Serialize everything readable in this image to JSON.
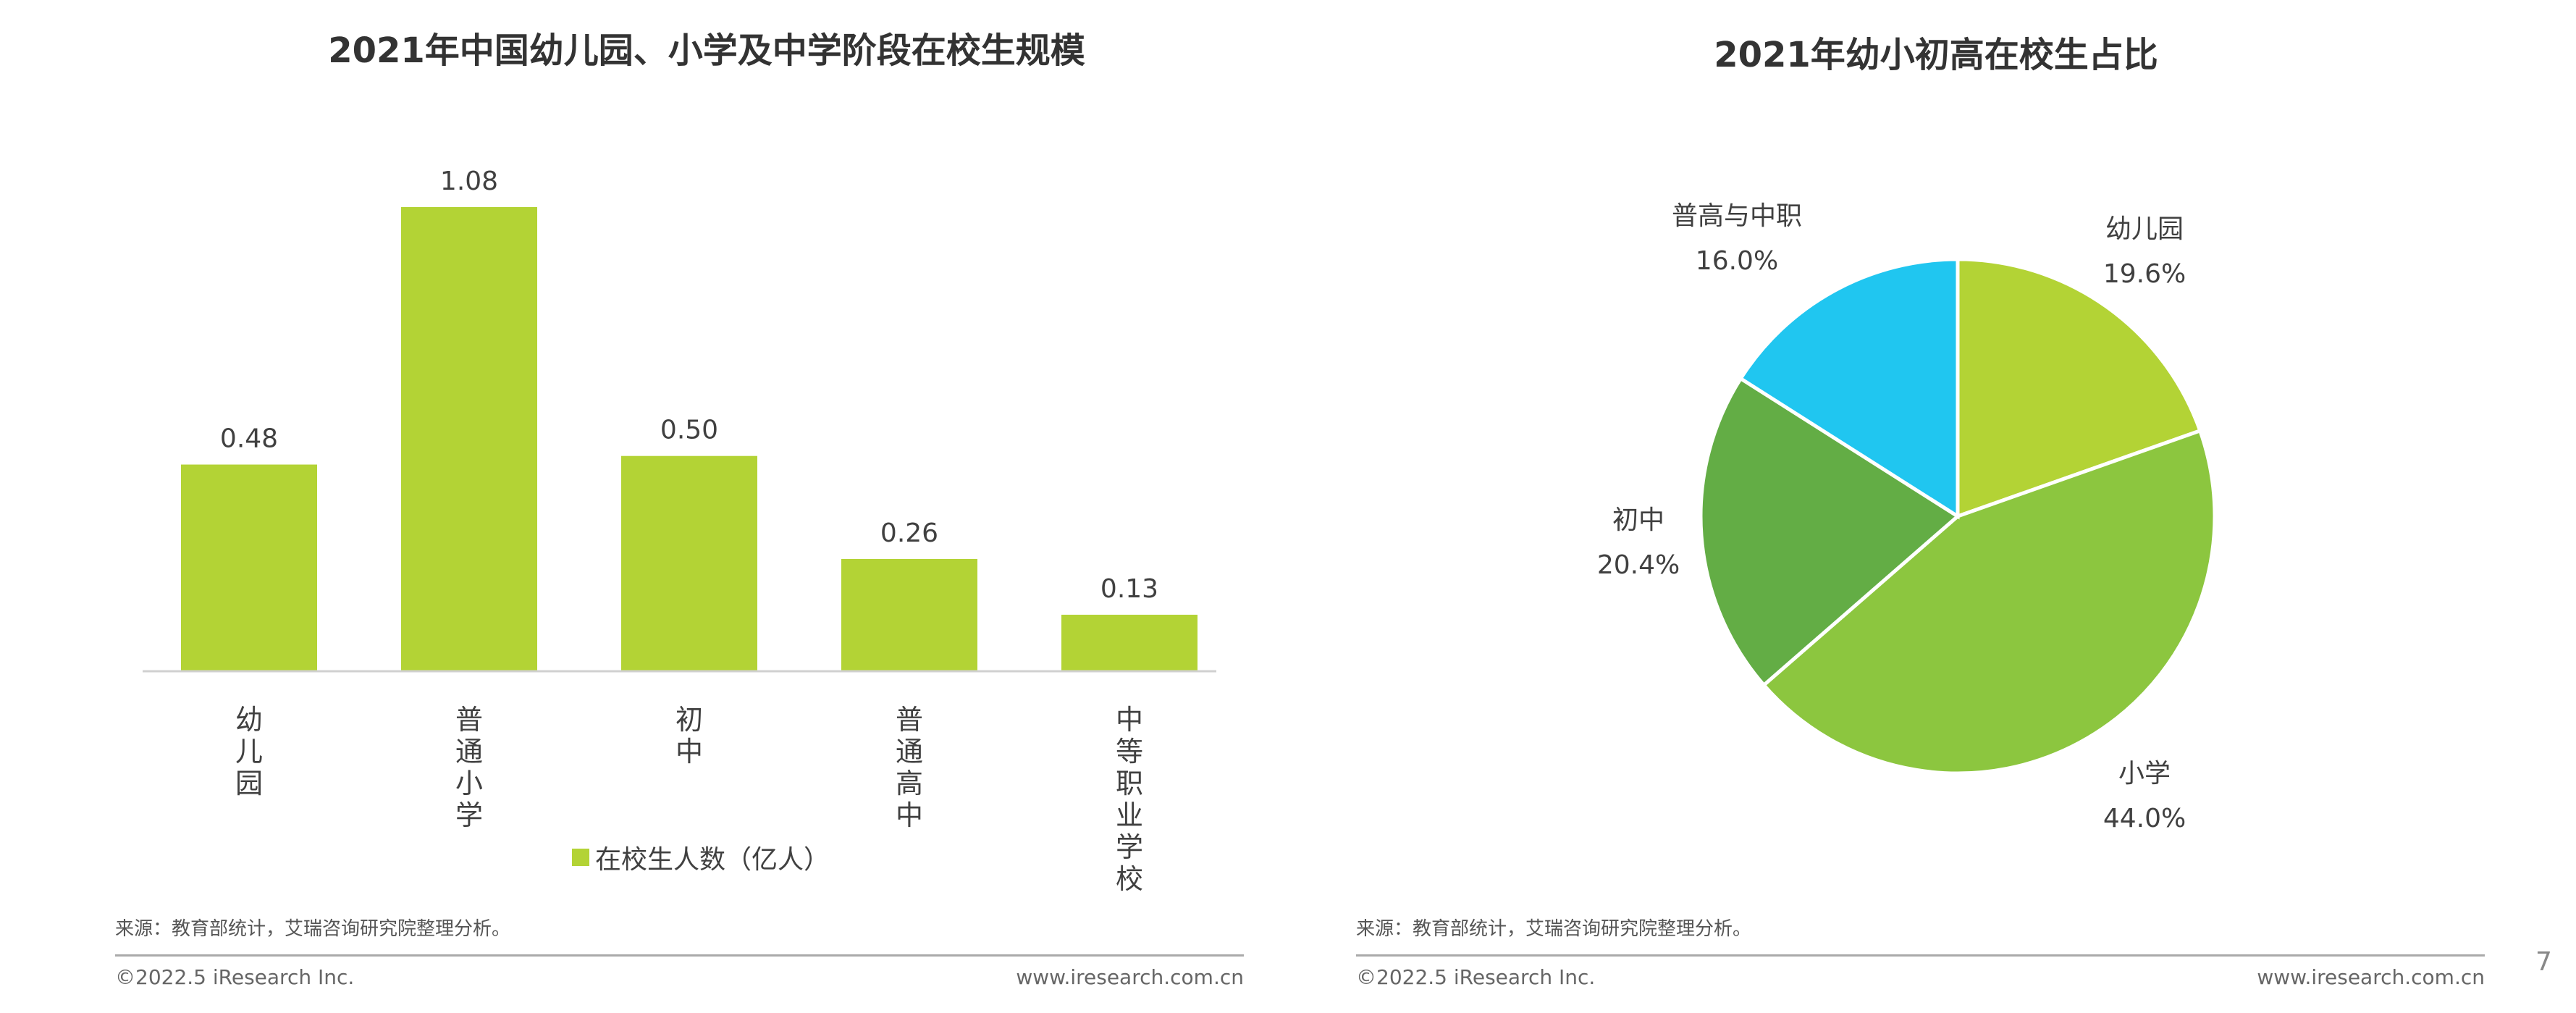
{
  "chart_data": [
    {
      "type": "bar",
      "title": "2021年中国幼儿园、小学及中学阶段在校生规模",
      "categories": [
        "幼儿园",
        "普通小学",
        "初中",
        "普通高中",
        "中等职业学校"
      ],
      "series": [
        {
          "name": "在校生人数（亿人）",
          "values": [
            0.48,
            1.08,
            0.5,
            0.26,
            0.13
          ],
          "color": "#b3d335"
        }
      ],
      "data_labels": [
        "0.48",
        "1.08",
        "0.50",
        "0.26",
        "0.13"
      ],
      "ylim": [
        0,
        1.08
      ],
      "grid": false,
      "legend_position": "bottom"
    },
    {
      "type": "pie",
      "title": "2021年幼小初高在校生占比",
      "slices": [
        {
          "label": "幼儿园",
          "value": 19.6,
          "text": "19.6%",
          "color": "#b3d335"
        },
        {
          "label": "小学",
          "value": 44.0,
          "text": "44.0%",
          "color": "#8cc63f"
        },
        {
          "label": "初中",
          "value": 20.4,
          "text": "20.4%",
          "color": "#63ad45"
        },
        {
          "label": "普高与中职",
          "value": 16.0,
          "text": "16.0%",
          "color": "#20c6f0"
        }
      ],
      "start_angle": "12 o'clock",
      "direction": "clockwise"
    }
  ],
  "footer": {
    "source_left": "来源：教育部统计，艾瑞咨询研究院整理分析。",
    "source_right": "来源：教育部统计，艾瑞咨询研究院整理分析。",
    "copyright": "©2022.5 iResearch Inc.",
    "website": "www.iresearch.com.cn",
    "page_number": "7"
  }
}
